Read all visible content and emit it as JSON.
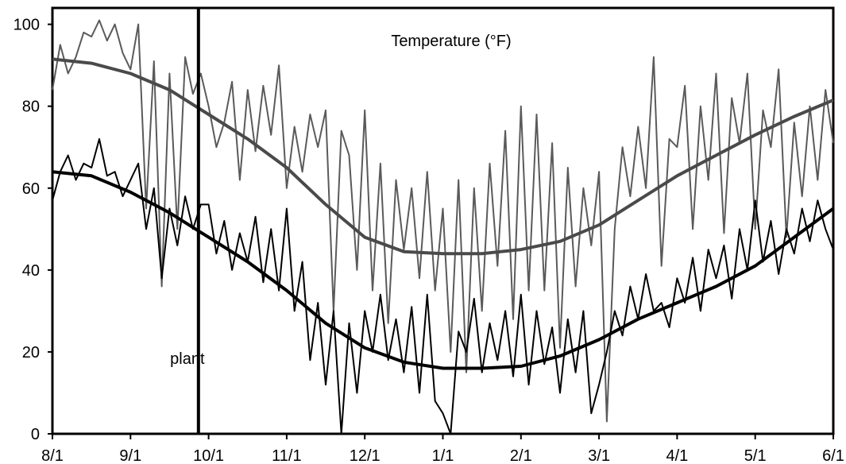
{
  "chart_data": {
    "type": "line",
    "title": "Temperature (°F)",
    "xlabel": "",
    "ylabel": "",
    "x_ticks": [
      "8/1",
      "9/1",
      "10/1",
      "11/1",
      "12/1",
      "1/1",
      "2/1",
      "3/1",
      "4/1",
      "5/1",
      "6/1"
    ],
    "y_ticks": [
      0,
      20,
      40,
      60,
      80,
      100
    ],
    "ylim": [
      0,
      104
    ],
    "xlim_months": [
      0,
      10
    ],
    "grid": false,
    "annotations": [
      {
        "label": "plant",
        "x": "9/27",
        "x_month": 1.87
      }
    ],
    "series": [
      {
        "style": "daily-high",
        "color": "#5a5a5a",
        "x": [
          0.0,
          0.1,
          0.2,
          0.3,
          0.4,
          0.5,
          0.6,
          0.7,
          0.8,
          0.9,
          1.0,
          1.1,
          1.2,
          1.3,
          1.4,
          1.5,
          1.6,
          1.7,
          1.8,
          1.9,
          2.0,
          2.1,
          2.2,
          2.3,
          2.4,
          2.5,
          2.6,
          2.7,
          2.8,
          2.9,
          3.0,
          3.1,
          3.2,
          3.3,
          3.4,
          3.5,
          3.6,
          3.7,
          3.8,
          3.9,
          4.0,
          4.1,
          4.2,
          4.3,
          4.4,
          4.5,
          4.6,
          4.7,
          4.8,
          4.9,
          5.0,
          5.1,
          5.2,
          5.3,
          5.4,
          5.5,
          5.6,
          5.7,
          5.8,
          5.9,
          6.0,
          6.1,
          6.2,
          6.3,
          6.4,
          6.5,
          6.6,
          6.7,
          6.8,
          6.9,
          7.0,
          7.1,
          7.2,
          7.3,
          7.4,
          7.5,
          7.6,
          7.7,
          7.8,
          7.9,
          8.0,
          8.1,
          8.2,
          8.3,
          8.4,
          8.5,
          8.6,
          8.7,
          8.8,
          8.9,
          9.0,
          9.1,
          9.2,
          9.3,
          9.4,
          9.5,
          9.6,
          9.7,
          9.8,
          9.9,
          10.0
        ],
        "values": [
          84,
          95,
          88,
          92,
          98,
          97,
          101,
          96,
          100,
          93,
          89,
          100,
          55,
          91,
          36,
          88,
          50,
          92,
          83,
          88,
          80,
          70,
          76,
          86,
          62,
          84,
          69,
          85,
          73,
          90,
          60,
          75,
          64,
          78,
          70,
          79,
          30,
          74,
          68,
          40,
          79,
          35,
          66,
          27,
          62,
          45,
          60,
          38,
          64,
          35,
          55,
          20,
          62,
          15,
          60,
          30,
          66,
          41,
          74,
          28,
          80,
          35,
          78,
          35,
          71,
          21,
          65,
          36,
          60,
          46,
          64,
          3,
          50,
          70,
          58,
          75,
          60,
          92,
          41,
          72,
          70,
          85,
          50,
          80,
          62,
          88,
          49,
          82,
          71,
          88,
          50,
          79,
          70,
          89,
          48,
          76,
          58,
          80,
          62,
          84,
          71
        ]
      },
      {
        "style": "daily-low",
        "color": "#000000",
        "x": [
          0.0,
          0.1,
          0.2,
          0.3,
          0.4,
          0.5,
          0.6,
          0.7,
          0.8,
          0.9,
          1.0,
          1.1,
          1.2,
          1.3,
          1.4,
          1.5,
          1.6,
          1.7,
          1.8,
          1.9,
          2.0,
          2.1,
          2.2,
          2.3,
          2.4,
          2.5,
          2.6,
          2.7,
          2.8,
          2.9,
          3.0,
          3.1,
          3.2,
          3.3,
          3.4,
          3.5,
          3.6,
          3.7,
          3.8,
          3.9,
          4.0,
          4.1,
          4.2,
          4.3,
          4.4,
          4.5,
          4.6,
          4.7,
          4.8,
          4.9,
          5.0,
          5.1,
          5.2,
          5.3,
          5.4,
          5.5,
          5.6,
          5.7,
          5.8,
          5.9,
          6.0,
          6.1,
          6.2,
          6.3,
          6.4,
          6.5,
          6.6,
          6.7,
          6.8,
          6.9,
          7.0,
          7.1,
          7.2,
          7.3,
          7.4,
          7.5,
          7.6,
          7.7,
          7.8,
          7.9,
          8.0,
          8.1,
          8.2,
          8.3,
          8.4,
          8.5,
          8.6,
          8.7,
          8.8,
          8.9,
          9.0,
          9.1,
          9.2,
          9.3,
          9.4,
          9.5,
          9.6,
          9.7,
          9.8,
          9.9,
          10.0
        ],
        "values": [
          57,
          64,
          68,
          62,
          66,
          65,
          72,
          63,
          64,
          58,
          62,
          66,
          50,
          60,
          38,
          55,
          46,
          58,
          50,
          56,
          56,
          44,
          52,
          40,
          49,
          42,
          53,
          37,
          50,
          35,
          55,
          30,
          42,
          18,
          32,
          12,
          30,
          0,
          27,
          10,
          30,
          20,
          34,
          18,
          28,
          15,
          31,
          10,
          34,
          8,
          5,
          0,
          25,
          20,
          33,
          15,
          27,
          18,
          30,
          14,
          34,
          12,
          30,
          17,
          26,
          10,
          28,
          15,
          30,
          5,
          12,
          20,
          30,
          24,
          36,
          28,
          39,
          30,
          32,
          26,
          38,
          32,
          43,
          30,
          45,
          38,
          46,
          33,
          50,
          40,
          57,
          42,
          52,
          39,
          50,
          44,
          55,
          47,
          57,
          50,
          45
        ]
      },
      {
        "style": "normal-high",
        "color": "#4a4a4a",
        "x": [
          0.0,
          0.5,
          1.0,
          1.5,
          2.0,
          2.5,
          3.0,
          3.5,
          4.0,
          4.5,
          5.0,
          5.5,
          6.0,
          6.5,
          7.0,
          7.5,
          8.0,
          8.5,
          9.0,
          9.5,
          10.0
        ],
        "values": [
          91.5,
          90.5,
          88,
          84,
          78,
          72,
          65,
          56,
          48,
          44.5,
          44,
          44,
          45,
          47,
          51,
          57,
          63,
          68,
          73,
          77.5,
          81.5
        ]
      },
      {
        "style": "normal-low",
        "color": "#000000",
        "x": [
          0.0,
          0.5,
          1.0,
          1.5,
          2.0,
          2.5,
          3.0,
          3.5,
          4.0,
          4.5,
          5.0,
          5.5,
          6.0,
          6.5,
          7.0,
          7.5,
          8.0,
          8.5,
          9.0,
          9.5,
          10.0
        ],
        "values": [
          64,
          63,
          59,
          54,
          48,
          42,
          35,
          27,
          21,
          17.5,
          16,
          16,
          16.5,
          19,
          23,
          28,
          32,
          36,
          41,
          48,
          55
        ]
      }
    ]
  }
}
